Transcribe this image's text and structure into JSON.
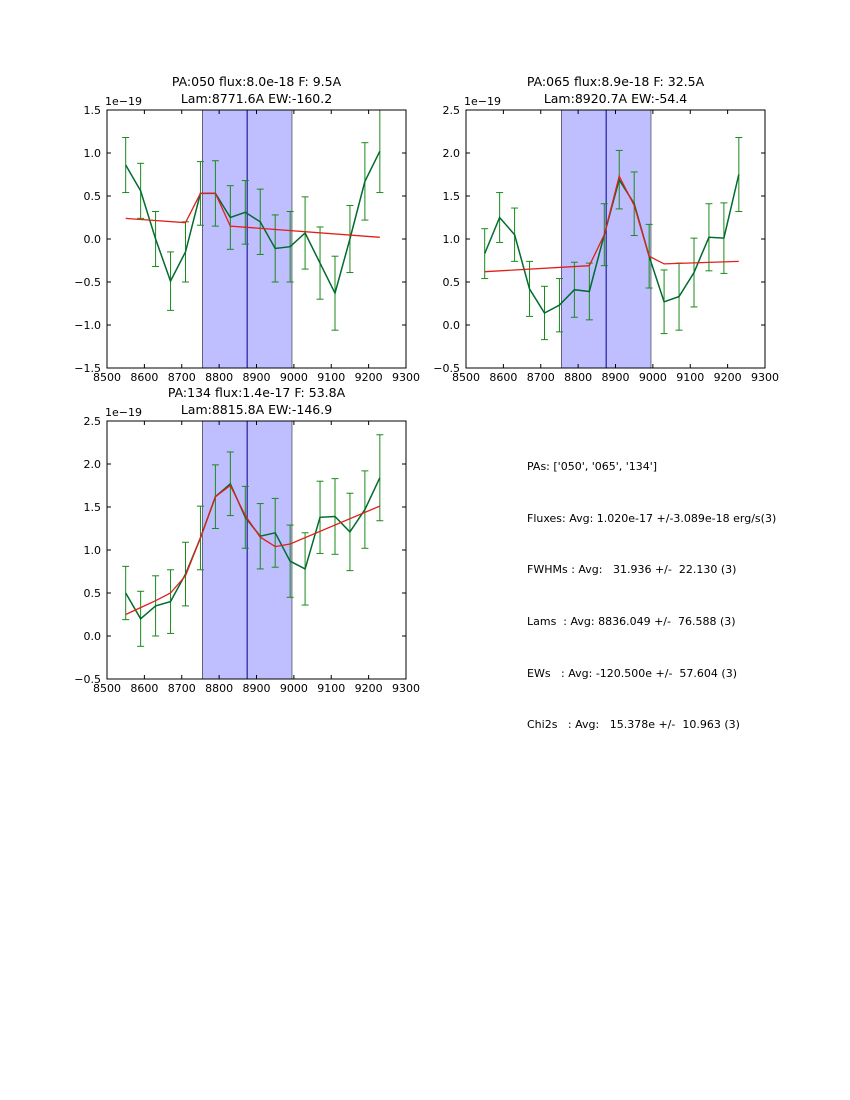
{
  "chart_data": [
    {
      "type": "line",
      "title_line1": "PA:050 flux:8.0e-18 F: 9.5A",
      "title_line2": "Lam:8771.6A EW:-160.2",
      "y_multiplier": "1e−19",
      "xlim": [
        8500,
        9300
      ],
      "ylim": [
        -1.5,
        1.5
      ],
      "xticks": [
        8500,
        8600,
        8700,
        8800,
        8900,
        9000,
        9100,
        9200,
        9300
      ],
      "yticks": [
        -1.5,
        -1.0,
        -0.5,
        0.0,
        0.5,
        1.0,
        1.5
      ],
      "ytick_labels": [
        "−1.5",
        "−1.0",
        "−0.5",
        "0.0",
        "0.5",
        "1.0",
        "1.5"
      ],
      "band": [
        8755,
        8995
      ],
      "center_line": 8875,
      "data": {
        "x": [
          8550,
          8590,
          8630,
          8670,
          8710,
          8750,
          8790,
          8830,
          8870,
          8910,
          8950,
          8990,
          9030,
          9070,
          9110,
          9150,
          9190,
          9230
        ],
        "y": [
          0.86,
          0.56,
          0.0,
          -0.49,
          -0.15,
          0.53,
          0.53,
          0.25,
          0.31,
          0.2,
          -0.11,
          -0.09,
          0.07,
          -0.28,
          -0.63,
          0.0,
          0.67,
          1.02
        ],
        "err": [
          0.32,
          0.32,
          0.32,
          0.34,
          0.35,
          0.37,
          0.38,
          0.37,
          0.37,
          0.38,
          0.39,
          0.41,
          0.42,
          0.42,
          0.43,
          0.39,
          0.45,
          0.48
        ]
      },
      "fit": {
        "x": [
          8550,
          8710,
          8750,
          8790,
          8830,
          9230
        ],
        "y": [
          0.24,
          0.19,
          0.53,
          0.53,
          0.15,
          0.02
        ]
      }
    },
    {
      "type": "line",
      "title_line1": "PA:065 flux:8.9e-18 F: 32.5A",
      "title_line2": "Lam:8920.7A EW:-54.4",
      "y_multiplier": "1e−19",
      "xlim": [
        8500,
        9300
      ],
      "ylim": [
        -0.5,
        2.5
      ],
      "xticks": [
        8500,
        8600,
        8700,
        8800,
        8900,
        9000,
        9100,
        9200,
        9300
      ],
      "yticks": [
        -0.5,
        0.0,
        0.5,
        1.0,
        1.5,
        2.0,
        2.5
      ],
      "ytick_labels": [
        "−0.5",
        "0.0",
        "0.5",
        "1.0",
        "1.5",
        "2.0",
        "2.5"
      ],
      "band": [
        8755,
        8995
      ],
      "center_line": 8875,
      "data": {
        "x": [
          8550,
          8590,
          8630,
          8670,
          8710,
          8750,
          8790,
          8830,
          8870,
          8910,
          8950,
          8990,
          9030,
          9070,
          9110,
          9150,
          9190,
          9230
        ],
        "y": [
          0.83,
          1.25,
          1.05,
          0.42,
          0.14,
          0.23,
          0.41,
          0.39,
          1.05,
          1.69,
          1.41,
          0.8,
          0.27,
          0.33,
          0.61,
          1.02,
          1.01,
          1.75
        ],
        "err": [
          0.29,
          0.29,
          0.31,
          0.32,
          0.31,
          0.31,
          0.32,
          0.33,
          0.36,
          0.34,
          0.37,
          0.37,
          0.37,
          0.39,
          0.4,
          0.39,
          0.41,
          0.43
        ]
      },
      "fit": {
        "x": [
          8550,
          8830,
          8870,
          8910,
          8950,
          8990,
          9030,
          9230
        ],
        "y": [
          0.62,
          0.69,
          1.05,
          1.73,
          1.39,
          0.8,
          0.71,
          0.74
        ]
      }
    },
    {
      "type": "line",
      "title_line1": "PA:134 flux:1.4e-17 F: 53.8A",
      "title_line2": "Lam:8815.8A EW:-146.9",
      "y_multiplier": "1e−19",
      "xlim": [
        8500,
        9300
      ],
      "ylim": [
        -0.5,
        2.5
      ],
      "xticks": [
        8500,
        8600,
        8700,
        8800,
        8900,
        9000,
        9100,
        9200,
        9300
      ],
      "yticks": [
        -0.5,
        0.0,
        0.5,
        1.0,
        1.5,
        2.0,
        2.5
      ],
      "ytick_labels": [
        "−0.5",
        "0.0",
        "0.5",
        "1.0",
        "1.5",
        "2.0",
        "2.5"
      ],
      "band": [
        8755,
        8995
      ],
      "center_line": 8875,
      "data": {
        "x": [
          8550,
          8590,
          8630,
          8670,
          8710,
          8750,
          8790,
          8830,
          8870,
          8910,
          8950,
          8990,
          9030,
          9070,
          9110,
          9150,
          9190,
          9230
        ],
        "y": [
          0.5,
          0.2,
          0.35,
          0.4,
          0.72,
          1.14,
          1.62,
          1.77,
          1.38,
          1.16,
          1.2,
          0.87,
          0.78,
          1.38,
          1.39,
          1.21,
          1.47,
          1.84
        ],
        "err": [
          0.31,
          0.32,
          0.35,
          0.37,
          0.37,
          0.37,
          0.37,
          0.37,
          0.36,
          0.38,
          0.4,
          0.42,
          0.42,
          0.42,
          0.44,
          0.45,
          0.45,
          0.5
        ]
      },
      "fit": {
        "x": [
          8550,
          8590,
          8630,
          8670,
          8710,
          8750,
          8790,
          8830,
          8870,
          8910,
          8950,
          8990,
          9230
        ],
        "y": [
          0.25,
          0.33,
          0.41,
          0.5,
          0.7,
          1.14,
          1.62,
          1.75,
          1.4,
          1.15,
          1.04,
          1.07,
          1.51
        ]
      }
    }
  ],
  "colors": {
    "data_line": "#006b2e",
    "error_bars": "#1a8a1a",
    "fit_line": "#e0201a",
    "band_fill": "#bfbfff",
    "center_line": "#00008b"
  },
  "stats": {
    "pas": "PAs: ['050', '065', '134']",
    "fluxes": "Fluxes: Avg: 1.020e-17 +/-3.089e-18 erg/s(3)",
    "fwhms": "FWHMs : Avg:   31.936 +/-  22.130 (3)",
    "lams": "Lams  : Avg: 8836.049 +/-  76.588 (3)",
    "ews": "EWs   : Avg: -120.500e +/-  57.604 (3)",
    "chi2s": "Chi2s   : Avg:   15.378e +/-  10.963 (3)"
  }
}
